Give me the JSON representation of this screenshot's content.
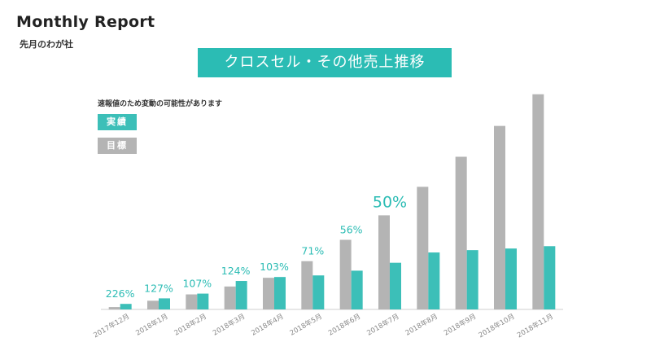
{
  "header": {
    "title": "Monthly Report",
    "subtitle": "先月のわが社"
  },
  "colors": {
    "actual": "#3cbfb8",
    "target": "#b4b4b4",
    "accent": "#2bbcb4"
  },
  "chart_data": {
    "type": "bar",
    "title": "クロスセル・その他売上推移",
    "note": "速報値のため変動の可能性があります",
    "legend": [
      "実績",
      "目標"
    ],
    "legend_position": "top-left",
    "categories": [
      "2017年12月",
      "2018年1月",
      "2018年2月",
      "2018年3月",
      "2018年4月",
      "2018年5月",
      "2018年6月",
      "2018年7月",
      "2018年8月",
      "2018年9月",
      "2018年10月",
      "2018年11月"
    ],
    "series": [
      {
        "name": "実績",
        "values": [
          7,
          14,
          20,
          36,
          41,
          43,
          49,
          59,
          72,
          75,
          77,
          80
        ]
      },
      {
        "name": "目標",
        "values": [
          3,
          11,
          19,
          29,
          40,
          61,
          88,
          119,
          155,
          193,
          232,
          272
        ]
      }
    ],
    "labels": [
      "226%",
      "127%",
      "107%",
      "124%",
      "103%",
      "71%",
      "56%",
      "50%",
      "",
      "",
      "",
      ""
    ],
    "ylim": [
      0,
      280
    ],
    "grid": false
  }
}
